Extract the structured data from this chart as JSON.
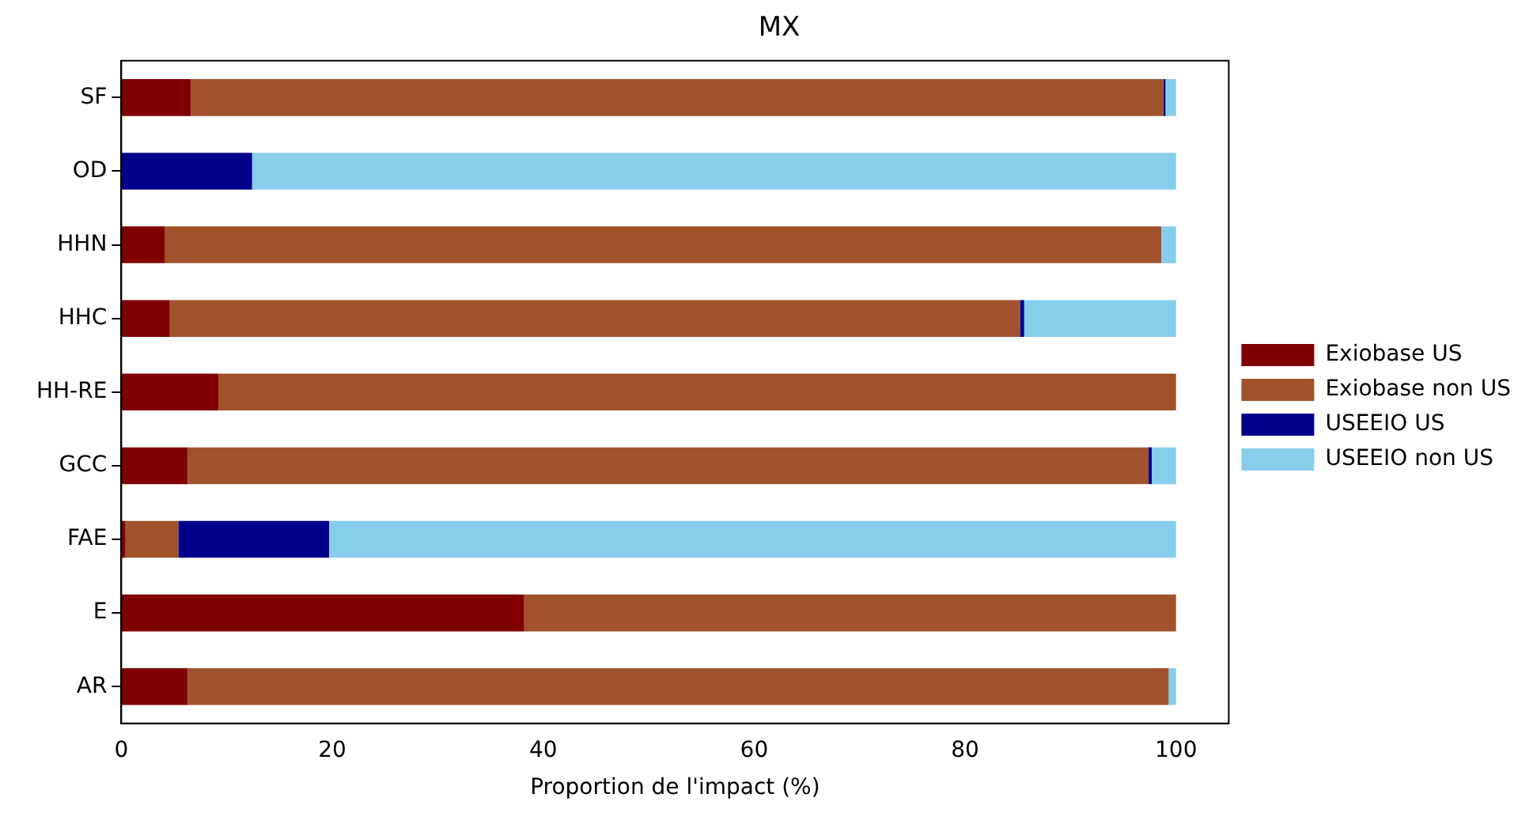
{
  "chart_data": {
    "type": "bar",
    "title": "MX",
    "xlabel": "Proportion de l'impact (%)",
    "orientation": "horizontal",
    "stacked": true,
    "categories": [
      "SF",
      "OD",
      "HHN",
      "HHC",
      "HH-RE",
      "GCC",
      "FAE",
      "E",
      "AR"
    ],
    "series": [
      {
        "name": "Exiobase US",
        "color": "#800000",
        "values": [
          6.6,
          0,
          4.1,
          4.6,
          9.2,
          6.3,
          0.4,
          38.2,
          6.3
        ]
      },
      {
        "name": "Exiobase non US",
        "color": "#a0522d",
        "values": [
          92.2,
          0,
          94.5,
          80.6,
          90.8,
          91.1,
          5.0,
          61.8,
          93.0
        ]
      },
      {
        "name": "USEEIO US",
        "color": "#00008b",
        "values": [
          0.2,
          12.4,
          0,
          0.4,
          0,
          0.3,
          14.3,
          0,
          0
        ]
      },
      {
        "name": "USEEIO non US",
        "color": "#87ceeb",
        "values": [
          1.0,
          87.6,
          1.4,
          14.4,
          0,
          2.3,
          80.3,
          0,
          0.7
        ]
      }
    ],
    "xlim": [
      0,
      105
    ],
    "xticks": [
      0,
      20,
      40,
      60,
      80,
      100
    ],
    "grid": false,
    "legend": "right"
  }
}
